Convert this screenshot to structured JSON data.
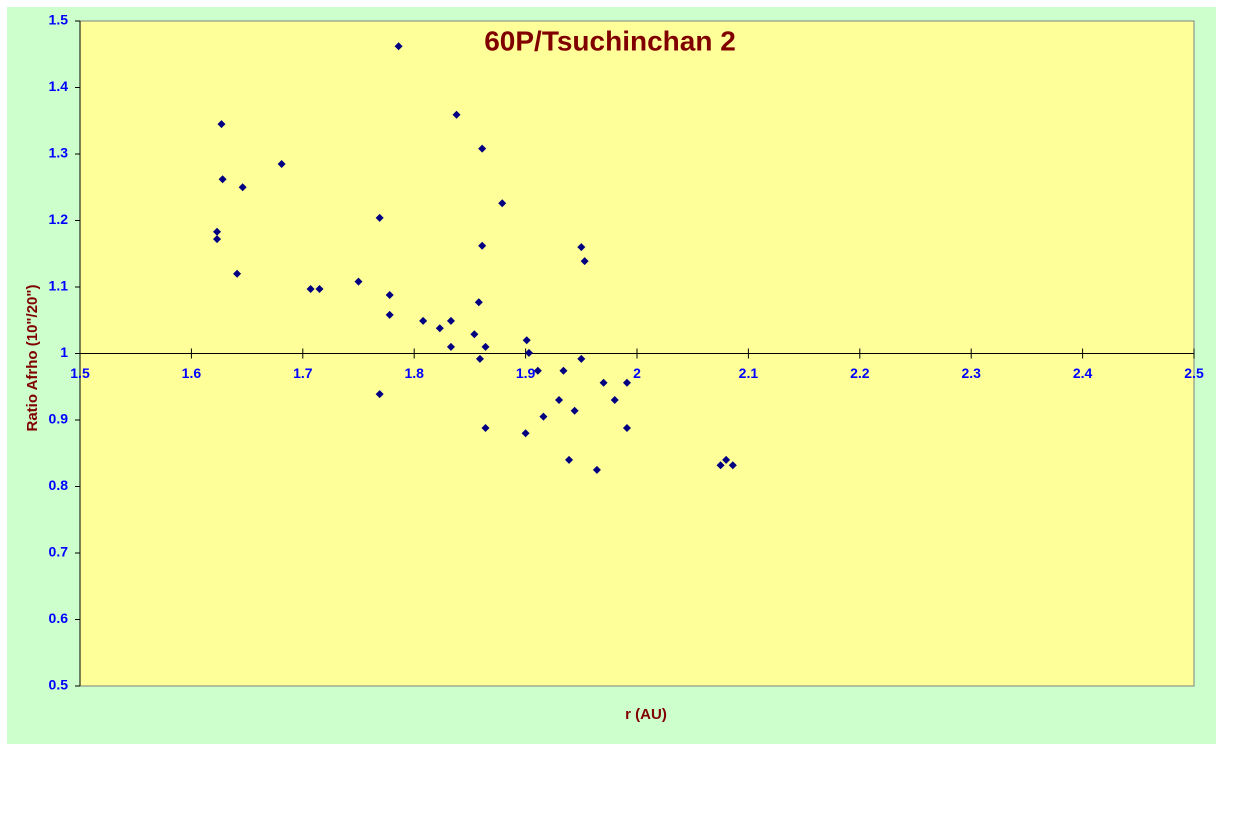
{
  "chart_data": {
    "type": "scatter",
    "title": "60P/Tsuchinchan 2",
    "x_label": "r (AU)",
    "y_label": "Ratio Afrho (10\"/20\")",
    "xlim": [
      1.5,
      2.5
    ],
    "xticks": [
      1.5,
      1.6,
      1.7,
      1.8,
      1.9,
      2,
      2.1,
      2.2,
      2.3,
      2.4,
      2.5
    ],
    "ylim": [
      0.5,
      1.5
    ],
    "yticks": [
      0.5,
      0.6,
      0.7,
      0.8,
      0.9,
      1,
      1.1,
      1.2,
      1.3,
      1.4,
      1.5
    ],
    "x_axis_crossing": 1,
    "series": [
      {
        "color": "#000080",
        "x": [
          1.623,
          1.623,
          1.627,
          1.628,
          1.646,
          1.641,
          1.681,
          1.707,
          1.715,
          1.75,
          1.769,
          1.769,
          1.786,
          1.778,
          1.778,
          1.808,
          1.823,
          1.833,
          1.833,
          1.838,
          1.854,
          1.858,
          1.859,
          1.861,
          1.861,
          1.864,
          1.864,
          1.879,
          1.9,
          1.901,
          1.903,
          1.911,
          1.916,
          1.93,
          1.934,
          1.939,
          1.944,
          1.95,
          1.95,
          1.953,
          1.964,
          1.97,
          1.98,
          1.991,
          1.991,
          2.075,
          2.08,
          2.086
        ],
        "values": [
          1.183,
          1.172,
          1.345,
          1.262,
          1.25,
          1.12,
          1.285,
          1.097,
          1.097,
          1.108,
          1.204,
          0.939,
          1.462,
          1.088,
          1.058,
          1.049,
          1.038,
          1.049,
          1.01,
          1.359,
          1.029,
          1.077,
          0.992,
          1.308,
          1.162,
          1.01,
          0.888,
          1.226,
          0.88,
          1.02,
          1.001,
          0.974,
          0.905,
          0.93,
          0.974,
          0.84,
          0.914,
          1.16,
          0.992,
          1.139,
          0.825,
          0.956,
          0.93,
          0.956,
          0.888,
          0.832,
          0.84,
          0.832
        ]
      }
    ]
  }
}
